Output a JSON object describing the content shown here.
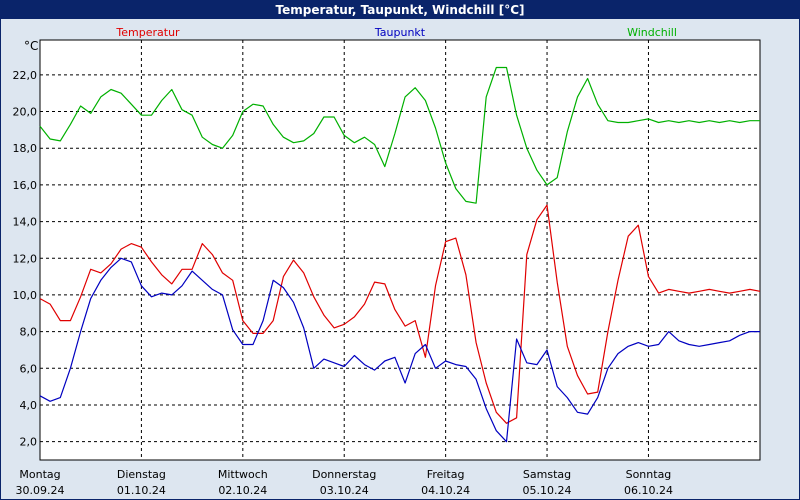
{
  "window": {
    "title": "Temperatur, Taupunkt, Windchill [°C]"
  },
  "chart_data": {
    "type": "line",
    "title": "Temperatur, Taupunkt, Windchill [°C]",
    "ylabel": "°C",
    "xlabel": "",
    "ylim": [
      1.0,
      23.9
    ],
    "xlim": [
      0,
      7.1
    ],
    "grid": true,
    "y_ticks": [
      2.0,
      4.0,
      6.0,
      8.0,
      10.0,
      12.0,
      14.0,
      16.0,
      18.0,
      20.0,
      22.0
    ],
    "y_tick_labels": [
      "2,0",
      "4,0",
      "6,0",
      "8,0",
      "10,0",
      "12,0",
      "14,0",
      "16,0",
      "18,0",
      "20,0",
      "22,0"
    ],
    "x_ticks": [
      {
        "day": "Montag",
        "date": "30.09.24",
        "x": 0
      },
      {
        "day": "Dienstag",
        "date": "01.10.24",
        "x": 1
      },
      {
        "day": "Mittwoch",
        "date": "02.10.24",
        "x": 2
      },
      {
        "day": "Donnerstag",
        "date": "03.10.24",
        "x": 3
      },
      {
        "day": "Freitag",
        "date": "04.10.24",
        "x": 4
      },
      {
        "day": "Samstag",
        "date": "05.10.24",
        "x": 5
      },
      {
        "day": "Sonntag",
        "date": "06.10.24",
        "x": 6
      }
    ],
    "legend": [
      {
        "name": "Temperatur",
        "color": "#e00000",
        "position": "top-left"
      },
      {
        "name": "Taupunkt",
        "color": "#0000c0",
        "position": "top-center"
      },
      {
        "name": "Windchill",
        "color": "#00b000",
        "position": "top-right"
      }
    ],
    "series": [
      {
        "name": "Temperatur",
        "color": "#e00000",
        "x": [
          0,
          0.1,
          0.2,
          0.3,
          0.4,
          0.5,
          0.6,
          0.7,
          0.8,
          0.9,
          1.0,
          1.1,
          1.2,
          1.3,
          1.4,
          1.5,
          1.6,
          1.7,
          1.8,
          1.9,
          2.0,
          2.1,
          2.2,
          2.3,
          2.4,
          2.5,
          2.6,
          2.7,
          2.8,
          2.9,
          3.0,
          3.1,
          3.2,
          3.3,
          3.4,
          3.5,
          3.6,
          3.7,
          3.8,
          3.9,
          4.0,
          4.1,
          4.2,
          4.3,
          4.4,
          4.5,
          4.6,
          4.7,
          4.8,
          4.9,
          5.0,
          5.1,
          5.2,
          5.3,
          5.4,
          5.5,
          5.6,
          5.7,
          5.8,
          5.9,
          6.0,
          6.1,
          6.2,
          6.3,
          6.4,
          6.5,
          6.6,
          6.7,
          6.8,
          6.9,
          7.0,
          7.1
        ],
        "values": [
          9.8,
          9.5,
          8.6,
          8.6,
          9.9,
          11.4,
          11.2,
          11.7,
          12.5,
          12.8,
          12.6,
          11.8,
          11.1,
          10.6,
          11.4,
          11.4,
          12.8,
          12.2,
          11.2,
          10.8,
          8.6,
          7.9,
          7.9,
          8.6,
          11.0,
          11.9,
          11.2,
          9.9,
          8.9,
          8.2,
          8.4,
          8.8,
          9.5,
          10.7,
          10.6,
          9.2,
          8.3,
          8.6,
          6.6,
          10.5,
          12.9,
          13.1,
          11.1,
          7.4,
          5.2,
          3.6,
          3.0,
          3.3,
          12.2,
          14.1,
          14.9,
          10.7,
          7.2,
          5.6,
          4.6,
          4.7,
          8.0,
          10.8,
          13.2,
          13.8,
          11.0,
          10.1,
          10.3,
          10.2,
          10.1,
          10.2,
          10.3,
          10.2,
          10.1,
          10.2,
          10.3,
          10.2
        ]
      },
      {
        "name": "Taupunkt",
        "color": "#0000c0",
        "x": [
          0,
          0.1,
          0.2,
          0.3,
          0.4,
          0.5,
          0.6,
          0.7,
          0.8,
          0.9,
          1.0,
          1.1,
          1.2,
          1.3,
          1.4,
          1.5,
          1.6,
          1.7,
          1.8,
          1.9,
          2.0,
          2.1,
          2.2,
          2.3,
          2.4,
          2.5,
          2.6,
          2.7,
          2.8,
          2.9,
          3.0,
          3.1,
          3.2,
          3.3,
          3.4,
          3.5,
          3.6,
          3.7,
          3.8,
          3.9,
          4.0,
          4.1,
          4.2,
          4.3,
          4.4,
          4.5,
          4.6,
          4.7,
          4.8,
          4.9,
          5.0,
          5.1,
          5.2,
          5.3,
          5.4,
          5.5,
          5.6,
          5.7,
          5.8,
          5.9,
          6.0,
          6.1,
          6.2,
          6.3,
          6.4,
          6.5,
          6.6,
          6.7,
          6.8,
          6.9,
          7.0,
          7.1
        ],
        "values": [
          4.5,
          4.2,
          4.4,
          6.0,
          8.0,
          9.8,
          10.8,
          11.5,
          12.0,
          11.8,
          10.5,
          9.9,
          10.1,
          10.0,
          10.5,
          11.3,
          10.8,
          10.3,
          10.0,
          8.1,
          7.3,
          7.3,
          8.6,
          10.8,
          10.4,
          9.6,
          8.2,
          6.0,
          6.5,
          6.3,
          6.1,
          6.7,
          6.2,
          5.9,
          6.4,
          6.6,
          5.2,
          6.8,
          7.3,
          6.0,
          6.4,
          6.2,
          6.1,
          5.4,
          3.8,
          2.6,
          2.0,
          7.6,
          6.3,
          6.2,
          7.0,
          5.0,
          4.4,
          3.6,
          3.5,
          4.4,
          6.0,
          6.8,
          7.2,
          7.4,
          7.2,
          7.3,
          8.0,
          7.5,
          7.3,
          7.2,
          7.3,
          7.4,
          7.5,
          7.8,
          8.0,
          8.0
        ]
      },
      {
        "name": "Windchill",
        "color": "#00b000",
        "x": [
          0,
          0.1,
          0.2,
          0.3,
          0.4,
          0.5,
          0.6,
          0.7,
          0.8,
          0.9,
          1.0,
          1.1,
          1.2,
          1.3,
          1.4,
          1.5,
          1.6,
          1.7,
          1.8,
          1.9,
          2.0,
          2.1,
          2.2,
          2.3,
          2.4,
          2.5,
          2.6,
          2.7,
          2.8,
          2.9,
          3.0,
          3.1,
          3.2,
          3.3,
          3.4,
          3.5,
          3.6,
          3.7,
          3.8,
          3.9,
          4.0,
          4.1,
          4.2,
          4.3,
          4.4,
          4.5,
          4.6,
          4.7,
          4.8,
          4.9,
          5.0,
          5.1,
          5.2,
          5.3,
          5.4,
          5.5,
          5.6,
          5.7,
          5.8,
          5.9,
          6.0,
          6.1,
          6.2,
          6.3,
          6.4,
          6.5,
          6.6,
          6.7,
          6.8,
          6.9,
          7.0,
          7.1
        ],
        "values": [
          19.2,
          18.5,
          18.4,
          19.3,
          20.3,
          19.9,
          20.8,
          21.2,
          21.0,
          20.4,
          19.8,
          19.8,
          20.6,
          21.2,
          20.1,
          19.8,
          18.6,
          18.2,
          18.0,
          18.7,
          20.0,
          20.4,
          20.3,
          19.3,
          18.6,
          18.3,
          18.4,
          18.8,
          19.7,
          19.7,
          18.7,
          18.3,
          18.6,
          18.2,
          17.0,
          18.8,
          20.8,
          21.3,
          20.6,
          19.1,
          17.2,
          15.8,
          15.1,
          15.0,
          20.8,
          22.4,
          22.4,
          19.8,
          18.0,
          16.8,
          16.0,
          16.4,
          18.9,
          20.8,
          21.8,
          20.4,
          19.5,
          19.4,
          19.4,
          19.5,
          19.6,
          19.4,
          19.5,
          19.4,
          19.5,
          19.4,
          19.5,
          19.4,
          19.5,
          19.4,
          19.5,
          19.5
        ]
      }
    ]
  }
}
